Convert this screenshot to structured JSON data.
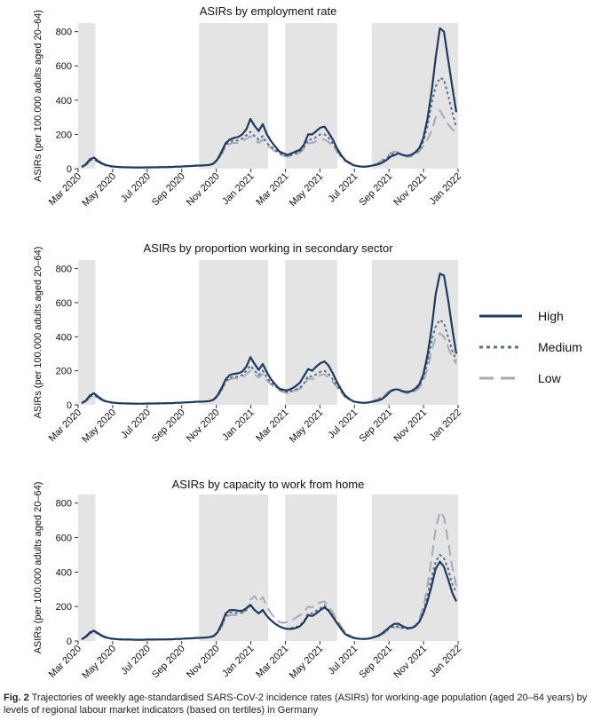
{
  "caption": {
    "label": "Fig. 2",
    "text": "Trajectories of weekly age-standardised SARS-CoV-2 incidence rates (ASIRs) for working-age population (aged 20–64 years) by levels of regional labour market indicators (based on tertiles) in Germany"
  },
  "legend": {
    "items": [
      {
        "name": "High",
        "color": "#1f3a5f",
        "style": "solid"
      },
      {
        "name": "Medium",
        "color": "#5a6f8c",
        "style": "dotted"
      },
      {
        "name": "Low",
        "color": "#a3aab8",
        "style": "dashed"
      }
    ]
  },
  "chart_data": [
    {
      "type": "line",
      "title": "ASIRs by employment rate",
      "ylabel": "ASIRs (per 100.000 adults aged 20–64)",
      "xlabel": "",
      "ylim": [
        0,
        850
      ],
      "yticks": [
        0,
        200,
        400,
        600,
        800
      ],
      "xticks": [
        "Mar 2020",
        "May 2020",
        "Jul 2020",
        "Sep 2020",
        "Nov 2020",
        "Jan 2021",
        "Mar 2021",
        "May 2021",
        "Jul 2021",
        "Sep 2021",
        "Nov 2021",
        "Jan 2022"
      ],
      "shaded_periods": [
        [
          "Mar 2020",
          "Apr 2020"
        ],
        [
          "Oct 2020",
          "Feb 2021"
        ],
        [
          "Mar 2021",
          "Jun 2021"
        ],
        [
          "Aug 2021",
          "Jan 2022"
        ]
      ],
      "grid": false,
      "legend_position": "right",
      "series": [
        {
          "name": "High",
          "values": [
            10,
            25,
            55,
            65,
            45,
            30,
            20,
            15,
            12,
            10,
            9,
            8,
            8,
            7,
            7,
            7,
            8,
            8,
            8,
            9,
            9,
            10,
            10,
            12,
            12,
            14,
            15,
            16,
            18,
            18,
            20,
            22,
            30,
            55,
            100,
            150,
            170,
            180,
            185,
            200,
            230,
            290,
            250,
            220,
            260,
            200,
            160,
            130,
            100,
            90,
            80,
            90,
            100,
            110,
            140,
            200,
            200,
            220,
            240,
            245,
            210,
            170,
            120,
            80,
            50,
            35,
            20,
            15,
            12,
            12,
            15,
            20,
            25,
            35,
            50,
            70,
            80,
            90,
            80,
            75,
            80,
            95,
            120,
            180,
            290,
            450,
            650,
            820,
            800,
            640,
            480,
            330
          ]
        },
        {
          "name": "Medium",
          "values": [
            10,
            22,
            48,
            55,
            40,
            28,
            18,
            14,
            11,
            10,
            9,
            8,
            8,
            7,
            7,
            7,
            8,
            8,
            8,
            9,
            9,
            10,
            10,
            12,
            12,
            14,
            15,
            16,
            18,
            18,
            20,
            22,
            28,
            50,
            90,
            140,
            155,
            165,
            165,
            175,
            195,
            215,
            190,
            170,
            190,
            150,
            130,
            110,
            90,
            80,
            75,
            80,
            90,
            100,
            125,
            170,
            170,
            185,
            200,
            200,
            180,
            145,
            110,
            75,
            45,
            32,
            20,
            15,
            12,
            12,
            15,
            22,
            28,
            40,
            60,
            80,
            90,
            90,
            80,
            75,
            78,
            90,
            110,
            160,
            250,
            380,
            480,
            530,
            520,
            430,
            330,
            240
          ]
        },
        {
          "name": "Low",
          "values": [
            10,
            20,
            42,
            50,
            38,
            26,
            17,
            13,
            11,
            10,
            9,
            8,
            8,
            7,
            7,
            7,
            8,
            8,
            8,
            9,
            9,
            10,
            10,
            12,
            12,
            14,
            15,
            16,
            18,
            18,
            20,
            22,
            28,
            48,
            85,
            130,
            145,
            150,
            150,
            160,
            175,
            190,
            170,
            150,
            170,
            140,
            120,
            100,
            85,
            75,
            70,
            75,
            82,
            95,
            115,
            150,
            150,
            160,
            170,
            170,
            155,
            130,
            100,
            70,
            45,
            32,
            20,
            15,
            12,
            12,
            16,
            25,
            35,
            50,
            70,
            90,
            100,
            95,
            80,
            70,
            70,
            80,
            100,
            130,
            170,
            220,
            300,
            340,
            300,
            260,
            230,
            210
          ]
        }
      ]
    },
    {
      "type": "line",
      "title": "ASIRs by proportion working in secondary sector",
      "ylabel": "ASIRs (per 100.000 adults aged 20–64)",
      "xlabel": "",
      "ylim": [
        0,
        850
      ],
      "yticks": [
        0,
        200,
        400,
        600,
        800
      ],
      "xticks": [
        "Mar 2020",
        "May 2020",
        "Jul 2020",
        "Sep 2020",
        "Nov 2020",
        "Jan 2021",
        "Mar 2021",
        "May 2021",
        "Jul 2021",
        "Sep 2021",
        "Nov 2021",
        "Jan 2022"
      ],
      "shaded_periods": [
        [
          "Mar 2020",
          "Apr 2020"
        ],
        [
          "Oct 2020",
          "Feb 2021"
        ],
        [
          "Mar 2021",
          "Jun 2021"
        ],
        [
          "Aug 2021",
          "Jan 2022"
        ]
      ],
      "grid": false,
      "legend_position": "right",
      "series": [
        {
          "name": "High",
          "values": [
            10,
            25,
            55,
            68,
            48,
            30,
            20,
            15,
            12,
            10,
            9,
            8,
            8,
            7,
            7,
            7,
            8,
            8,
            8,
            9,
            9,
            10,
            10,
            12,
            12,
            14,
            15,
            16,
            18,
            18,
            20,
            22,
            30,
            55,
            100,
            150,
            175,
            182,
            185,
            195,
            225,
            280,
            240,
            205,
            240,
            190,
            150,
            120,
            95,
            88,
            85,
            95,
            110,
            130,
            170,
            210,
            200,
            225,
            245,
            255,
            230,
            185,
            135,
            90,
            55,
            35,
            20,
            15,
            12,
            12,
            15,
            20,
            25,
            35,
            55,
            80,
            90,
            90,
            80,
            75,
            80,
            95,
            120,
            180,
            290,
            450,
            650,
            770,
            760,
            620,
            450,
            300
          ]
        },
        {
          "name": "Medium",
          "values": [
            10,
            22,
            48,
            58,
            42,
            28,
            18,
            14,
            11,
            10,
            9,
            8,
            8,
            7,
            7,
            7,
            8,
            8,
            8,
            9,
            9,
            10,
            10,
            12,
            12,
            14,
            15,
            16,
            18,
            18,
            20,
            22,
            28,
            50,
            90,
            140,
            160,
            165,
            165,
            175,
            200,
            230,
            200,
            175,
            200,
            160,
            130,
            110,
            90,
            80,
            75,
            80,
            90,
            100,
            125,
            170,
            165,
            180,
            195,
            200,
            180,
            150,
            115,
            80,
            48,
            33,
            20,
            15,
            12,
            12,
            15,
            22,
            28,
            40,
            60,
            80,
            88,
            88,
            78,
            72,
            75,
            88,
            110,
            160,
            250,
            380,
            460,
            500,
            480,
            400,
            320,
            260
          ]
        },
        {
          "name": "Low",
          "values": [
            10,
            20,
            42,
            52,
            40,
            26,
            17,
            13,
            11,
            10,
            9,
            8,
            8,
            7,
            7,
            7,
            8,
            8,
            8,
            9,
            9,
            10,
            10,
            12,
            12,
            14,
            15,
            16,
            18,
            18,
            20,
            22,
            28,
            48,
            85,
            130,
            150,
            155,
            155,
            160,
            180,
            200,
            180,
            160,
            180,
            145,
            120,
            100,
            85,
            75,
            70,
            75,
            85,
            95,
            115,
            155,
            150,
            165,
            175,
            180,
            160,
            135,
            105,
            75,
            45,
            32,
            20,
            15,
            12,
            12,
            16,
            25,
            35,
            50,
            68,
            85,
            92,
            88,
            75,
            68,
            70,
            80,
            100,
            140,
            210,
            320,
            400,
            420,
            400,
            340,
            280,
            240
          ]
        }
      ]
    },
    {
      "type": "line",
      "title": "ASIRs by capacity to work from home",
      "ylabel": "ASIRs (per 100.000 adults aged 20–64)",
      "xlabel": "",
      "ylim": [
        0,
        850
      ],
      "yticks": [
        0,
        200,
        400,
        600,
        800
      ],
      "xticks": [
        "Mar 2020",
        "May 2020",
        "Jul 2020",
        "Sep 2020",
        "Nov 2020",
        "Jan 2021",
        "Mar 2021",
        "May 2021",
        "Jul 2021",
        "Sep 2021",
        "Nov 2021",
        "Jan 2022"
      ],
      "shaded_periods": [
        [
          "Mar 2020",
          "Apr 2020"
        ],
        [
          "Oct 2020",
          "Feb 2021"
        ],
        [
          "Mar 2021",
          "Jun 2021"
        ],
        [
          "Aug 2021",
          "Jan 2022"
        ]
      ],
      "grid": false,
      "legend_position": "right",
      "series": [
        {
          "name": "High",
          "values": [
            10,
            25,
            50,
            60,
            45,
            30,
            20,
            15,
            12,
            10,
            9,
            8,
            8,
            7,
            7,
            7,
            8,
            8,
            8,
            9,
            9,
            10,
            10,
            12,
            12,
            14,
            15,
            16,
            18,
            18,
            20,
            22,
            28,
            50,
            100,
            160,
            180,
            180,
            175,
            175,
            190,
            210,
            180,
            160,
            180,
            145,
            120,
            100,
            85,
            75,
            70,
            70,
            75,
            85,
            110,
            150,
            145,
            160,
            180,
            195,
            175,
            140,
            105,
            70,
            40,
            28,
            18,
            14,
            12,
            12,
            15,
            22,
            30,
            45,
            65,
            85,
            100,
            100,
            85,
            75,
            75,
            85,
            110,
            160,
            230,
            320,
            420,
            460,
            430,
            360,
            280,
            230
          ]
        },
        {
          "name": "Medium",
          "values": [
            10,
            22,
            45,
            55,
            42,
            28,
            18,
            14,
            11,
            10,
            9,
            8,
            8,
            7,
            7,
            7,
            8,
            8,
            8,
            9,
            9,
            10,
            10,
            12,
            12,
            14,
            15,
            16,
            18,
            18,
            20,
            22,
            28,
            48,
            90,
            145,
            165,
            165,
            160,
            165,
            180,
            205,
            180,
            160,
            175,
            145,
            120,
            100,
            85,
            75,
            70,
            75,
            80,
            90,
            115,
            160,
            160,
            175,
            190,
            205,
            180,
            145,
            110,
            75,
            45,
            30,
            19,
            14,
            12,
            12,
            15,
            22,
            28,
            40,
            60,
            78,
            85,
            85,
            75,
            70,
            72,
            85,
            115,
            170,
            260,
            370,
            460,
            500,
            480,
            420,
            330,
            280
          ]
        },
        {
          "name": "Low",
          "values": [
            10,
            20,
            40,
            50,
            40,
            26,
            17,
            13,
            11,
            10,
            9,
            8,
            8,
            7,
            7,
            7,
            8,
            8,
            8,
            9,
            9,
            10,
            10,
            12,
            12,
            14,
            15,
            16,
            18,
            18,
            20,
            22,
            26,
            45,
            80,
            135,
            150,
            150,
            150,
            160,
            180,
            240,
            260,
            225,
            255,
            200,
            160,
            130,
            110,
            105,
            110,
            120,
            135,
            150,
            170,
            200,
            195,
            210,
            225,
            230,
            200,
            165,
            125,
            85,
            50,
            34,
            20,
            15,
            12,
            12,
            15,
            22,
            28,
            38,
            55,
            70,
            80,
            80,
            72,
            68,
            75,
            90,
            130,
            200,
            320,
            480,
            650,
            750,
            720,
            580,
            430,
            320
          ]
        }
      ]
    }
  ]
}
